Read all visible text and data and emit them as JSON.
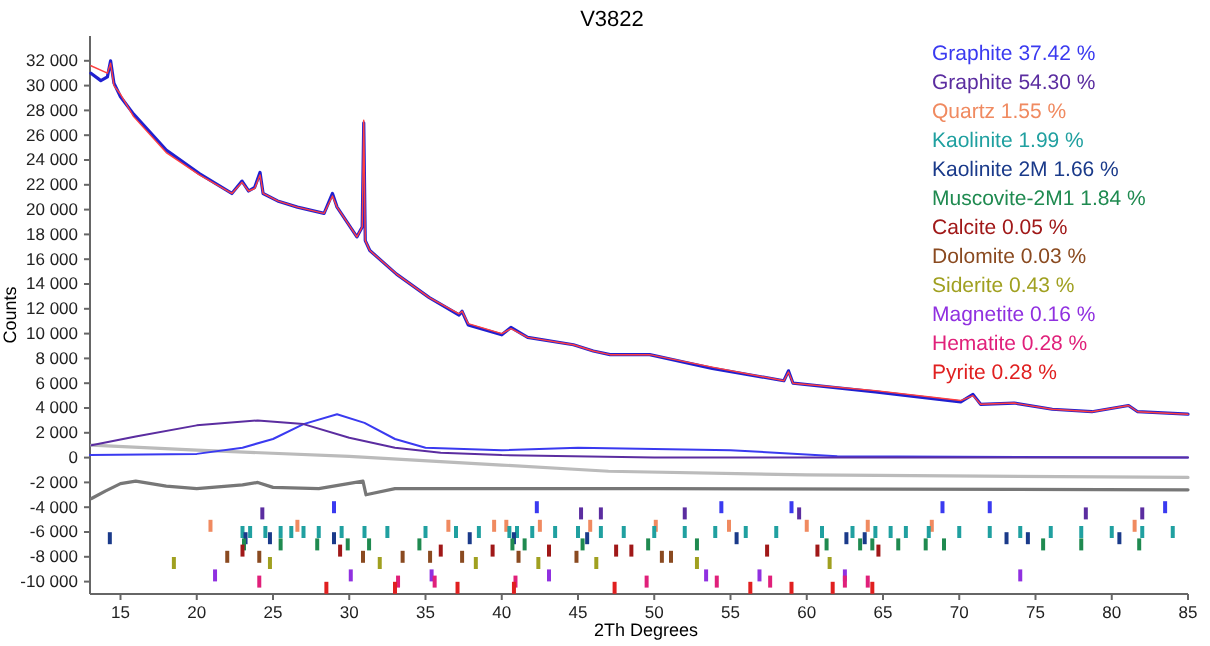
{
  "chart_data": {
    "type": "line",
    "title": "V3822",
    "xlabel": "2Th Degrees",
    "ylabel": "Counts",
    "xlim": [
      13,
      85
    ],
    "ylim": [
      -11000,
      34000
    ],
    "xticks": [
      15,
      20,
      25,
      30,
      35,
      40,
      45,
      50,
      55,
      60,
      65,
      70,
      75,
      80,
      85
    ],
    "yticks": [
      {
        "value": -10000,
        "label": "-10 000"
      },
      {
        "value": -8000,
        "label": "-8 000"
      },
      {
        "value": -6000,
        "label": "-6 000"
      },
      {
        "value": -4000,
        "label": "-4 000"
      },
      {
        "value": -2000,
        "label": "-2 000"
      },
      0,
      {
        "value": 2000,
        "label": "2 000"
      },
      {
        "value": 4000,
        "label": "4 000"
      },
      {
        "value": 6000,
        "label": "6 000"
      },
      {
        "value": 8000,
        "label": "8 000"
      },
      {
        "value": 10000,
        "label": "10 000"
      },
      {
        "value": 12000,
        "label": "12 000"
      },
      {
        "value": 14000,
        "label": "14 000"
      },
      {
        "value": 16000,
        "label": "16 000"
      },
      {
        "value": 18000,
        "label": "18 000"
      },
      {
        "value": 20000,
        "label": "20 000"
      },
      {
        "value": 22000,
        "label": "22 000"
      },
      {
        "value": 24000,
        "label": "24 000"
      },
      {
        "value": 26000,
        "label": "26 000"
      },
      {
        "value": 28000,
        "label": "28 000"
      },
      {
        "value": 30000,
        "label": "30 000"
      },
      {
        "value": 32000,
        "label": "32 000"
      }
    ],
    "grid": false,
    "legend": "top right",
    "series": [
      {
        "color": "#bbbbbb",
        "x": [
          13.1,
          20,
          30,
          40,
          47,
          60,
          85
        ],
        "values": [
          1000,
          600,
          100,
          -600,
          -1100,
          -1400,
          -1600
        ]
      },
      {
        "color": "#777777",
        "x": [
          13.1,
          14,
          15,
          16,
          18,
          20,
          23,
          24,
          25,
          28,
          30.9,
          31.1,
          33,
          50,
          85
        ],
        "values": [
          -3300,
          -2700,
          -2100,
          -1900,
          -2300,
          -2500,
          -2200,
          -2000,
          -2400,
          -2500,
          -1900,
          -3000,
          -2500,
          -2500,
          -2600
        ]
      },
      {
        "color": "#2020d0",
        "x": [
          13.06,
          13.71,
          14.14,
          14.35,
          14.57,
          15.0,
          15.86,
          18.0,
          20.17,
          22.3,
          22.97,
          23.4,
          23.8,
          24.15,
          24.35,
          25.3,
          26.6,
          28.35,
          28.9,
          29.2,
          30.5,
          30.85,
          30.95,
          31.05,
          31.35,
          33.1,
          35.25,
          37.2,
          37.4,
          37.8,
          40.0,
          40.6,
          41.7,
          44.7,
          46.0,
          47.1,
          49.7,
          53.8,
          58.5,
          58.8,
          59.1,
          64.5,
          70.1,
          70.9,
          71.4,
          73.6,
          76.1,
          78.7,
          81.1,
          81.7,
          85.0
        ],
        "values": [
          31000,
          30400,
          30700,
          32000,
          30200,
          29100,
          27700,
          24800,
          22900,
          21300,
          22300,
          21500,
          21800,
          23000,
          21300,
          20700,
          20200,
          19700,
          21300,
          20200,
          17800,
          18600,
          27000,
          17500,
          16700,
          14800,
          12900,
          11500,
          11800,
          10700,
          9900,
          10500,
          9700,
          9100,
          8600,
          8300,
          8300,
          7200,
          6200,
          7000,
          6000,
          5300,
          4500,
          5100,
          4300,
          4400,
          3900,
          3700,
          4200,
          3700,
          3500
        ]
      },
      {
        "color": "#ff4040",
        "x": [
          13.06,
          14.14,
          14.35,
          14.57,
          15.0,
          15.86,
          18.0,
          20.17,
          22.3,
          22.97,
          23.4,
          23.8,
          24.15,
          24.35,
          25.3,
          26.6,
          28.35,
          28.9,
          29.2,
          30.5,
          30.85,
          30.95,
          31.05,
          31.35,
          33.1,
          35.25,
          37.2,
          37.4,
          37.8,
          40.0,
          40.6,
          41.7,
          44.7,
          46.0,
          47.1,
          49.7,
          53.8,
          58.5,
          58.8,
          59.1,
          64.5,
          70.1,
          70.9,
          71.4,
          73.6,
          76.1,
          78.7,
          81.1,
          81.7,
          85.0
        ],
        "values": [
          31600,
          31000,
          31800,
          30000,
          29300,
          27500,
          24600,
          22800,
          21300,
          22200,
          21500,
          21700,
          22800,
          21300,
          20700,
          20200,
          19700,
          21100,
          20200,
          17800,
          18600,
          27200,
          17500,
          16700,
          14800,
          12900,
          11600,
          11800,
          10800,
          10000,
          10400,
          9700,
          9100,
          8600,
          8300,
          8300,
          7300,
          6200,
          6900,
          6000,
          5400,
          4600,
          5000,
          4300,
          4400,
          3900,
          3700,
          4200,
          3700,
          3500
        ]
      },
      {
        "name": "Graphite 37.42 %",
        "color": "#3a3af0",
        "x": [
          13,
          20,
          23,
          25,
          27,
          29.2,
          31,
          33,
          35,
          40,
          45,
          55,
          62,
          85
        ],
        "values": [
          200,
          300,
          800,
          1500,
          2700,
          3500,
          2800,
          1500,
          800,
          600,
          800,
          600,
          100,
          0
        ]
      },
      {
        "name": "Graphite 54.30 %",
        "color": "#5b2da0",
        "x": [
          13.1,
          16,
          20,
          24,
          27,
          30,
          33,
          36,
          40,
          50,
          85
        ],
        "values": [
          1000,
          1700,
          2600,
          3000,
          2700,
          1600,
          800,
          400,
          200,
          0,
          0
        ]
      },
      {
        "type": "scatter",
        "color": "#3a3af0",
        "x": [
          29.0,
          42.3,
          54.4,
          59.0,
          68.9,
          72.0,
          83.5
        ],
        "values": [
          -4000,
          -4000,
          -4000,
          -4000,
          -4000,
          -4000,
          -4000
        ]
      },
      {
        "type": "scatter",
        "color": "#5b2da0",
        "x": [
          24.3,
          45.2,
          46.5,
          52.0,
          59.5,
          78.3,
          82.0
        ],
        "values": [
          -4500,
          -4500,
          -4500,
          -4500,
          -4500,
          -4500,
          -4500
        ]
      },
      {
        "type": "scatter",
        "name": "Quartz 1.55 %",
        "color": "#f08a60",
        "x": [
          20.9,
          26.6,
          36.5,
          39.5,
          40.3,
          42.5,
          45.8,
          50.1,
          54.9,
          60.0,
          64.0,
          68.2,
          81.5
        ],
        "values": [
          -5500,
          -5500,
          -5500,
          -5500,
          -5500,
          -5500,
          -5500,
          -5500,
          -5500,
          -5500,
          -5500,
          -5500,
          -5500
        ]
      },
      {
        "type": "scatter",
        "name": "Kaolinite 1.99 %",
        "color": "#20a0a0",
        "x": [
          23.0,
          23.5,
          24.5,
          25.5,
          26.2,
          27.0,
          28.0,
          29.5,
          31.0,
          32.5,
          35.0,
          37.0,
          38.5,
          40.5,
          41.0,
          42.0,
          43.5,
          45.0,
          46.5,
          48,
          50,
          52,
          54,
          56,
          58,
          61,
          63,
          64.5,
          65.5,
          66.5,
          68,
          70,
          72,
          74,
          76,
          78,
          80,
          82,
          84
        ],
        "values": [
          -6000,
          -6000,
          -6000,
          -6000,
          -6000,
          -6000,
          -6000,
          -6000,
          -6000,
          -6000,
          -6000,
          -6000,
          -6000,
          -6000,
          -6000,
          -6000,
          -6000,
          -6000,
          -6000,
          -6000,
          -6000,
          -6000,
          -6000,
          -6000,
          -6000,
          -6000,
          -6000,
          -6000,
          -6000,
          -6000,
          -6000,
          -6000,
          -6000,
          -6000,
          -6000,
          -6000,
          -6000,
          -6000,
          -6000
        ]
      },
      {
        "type": "scatter",
        "name": "Kaolinite 2M 1.66 %",
        "color": "#1a3a8a",
        "x": [
          14.3,
          23.2,
          24.8,
          29.0,
          37.9,
          40.8,
          45.6,
          55.4,
          62.6,
          63.8,
          73.1,
          74.5,
          80.5
        ],
        "values": [
          -6500,
          -6500,
          -6500,
          -6500,
          -6500,
          -6500,
          -6500,
          -6500,
          -6500,
          -6500,
          -6500,
          -6500,
          -6500
        ]
      },
      {
        "type": "scatter",
        "name": "Muscovite-2M1 1.84 %",
        "color": "#1f8a50",
        "x": [
          23.1,
          25.5,
          27.9,
          29.9,
          31.3,
          34.6,
          40.7,
          41.5,
          45.3,
          49.6,
          52.8,
          61.3,
          63.5,
          64.3,
          66.0,
          67.8,
          69.0,
          75.5,
          78.0,
          81.8
        ],
        "values": [
          -7000,
          -7000,
          -7000,
          -7000,
          -7000,
          -7000,
          -7000,
          -7000,
          -7000,
          -7000,
          -7000,
          -7000,
          -7000,
          -7000,
          -7000,
          -7000,
          -7000,
          -7000,
          -7000,
          -7000
        ]
      },
      {
        "type": "scatter",
        "name": "Calcite 0.05 %",
        "color": "#a01818",
        "x": [
          23.0,
          29.4,
          36.0,
          39.4,
          43.1,
          47.5,
          48.5,
          57.4,
          60.7,
          64.7
        ],
        "values": [
          -7500,
          -7500,
          -7500,
          -7500,
          -7500,
          -7500,
          -7500,
          -7500,
          -7500,
          -7500
        ]
      },
      {
        "type": "scatter",
        "name": "Dolomite 0.03 %",
        "color": "#8a4a20",
        "x": [
          22.0,
          24.1,
          30.9,
          33.5,
          35.3,
          37.4,
          41.1,
          44.9,
          50.5,
          51.1
        ],
        "values": [
          -8000,
          -8000,
          -8000,
          -8000,
          -8000,
          -8000,
          -8000,
          -8000,
          -8000,
          -8000
        ]
      },
      {
        "type": "scatter",
        "name": "Siderite 0.43 %",
        "color": "#a0a020",
        "x": [
          18.5,
          24.8,
          32.0,
          38.3,
          42.4,
          46.2,
          52.8,
          61.5
        ],
        "values": [
          -8500,
          -8500,
          -8500,
          -8500,
          -8500,
          -8500,
          -8500,
          -8500
        ]
      },
      {
        "type": "scatter",
        "name": "Magnetite 0.16 %",
        "color": "#9030e0",
        "x": [
          21.2,
          30.1,
          35.4,
          43.1,
          53.4,
          56.9,
          62.5,
          74.0
        ],
        "values": [
          -9500,
          -9500,
          -9500,
          -9500,
          -9500,
          -9500,
          -9500,
          -9500
        ]
      },
      {
        "type": "scatter",
        "name": "Hematite 0.28 %",
        "color": "#e0207a",
        "x": [
          24.1,
          33.2,
          35.6,
          40.9,
          49.5,
          54.1,
          57.6,
          62.5,
          64.0
        ],
        "values": [
          -10000,
          -10000,
          -10000,
          -10000,
          -10000,
          -10000,
          -10000,
          -10000,
          -10000
        ]
      },
      {
        "type": "scatter",
        "name": "Pyrite 0.28 %",
        "color": "#e02020",
        "x": [
          28.5,
          33.0,
          37.1,
          40.8,
          47.4,
          56.3,
          59.0,
          61.7,
          64.3
        ],
        "values": [
          -10500,
          -10500,
          -10500,
          -10500,
          -10500,
          -10500,
          -10500,
          -10500,
          -10500
        ]
      }
    ]
  }
}
